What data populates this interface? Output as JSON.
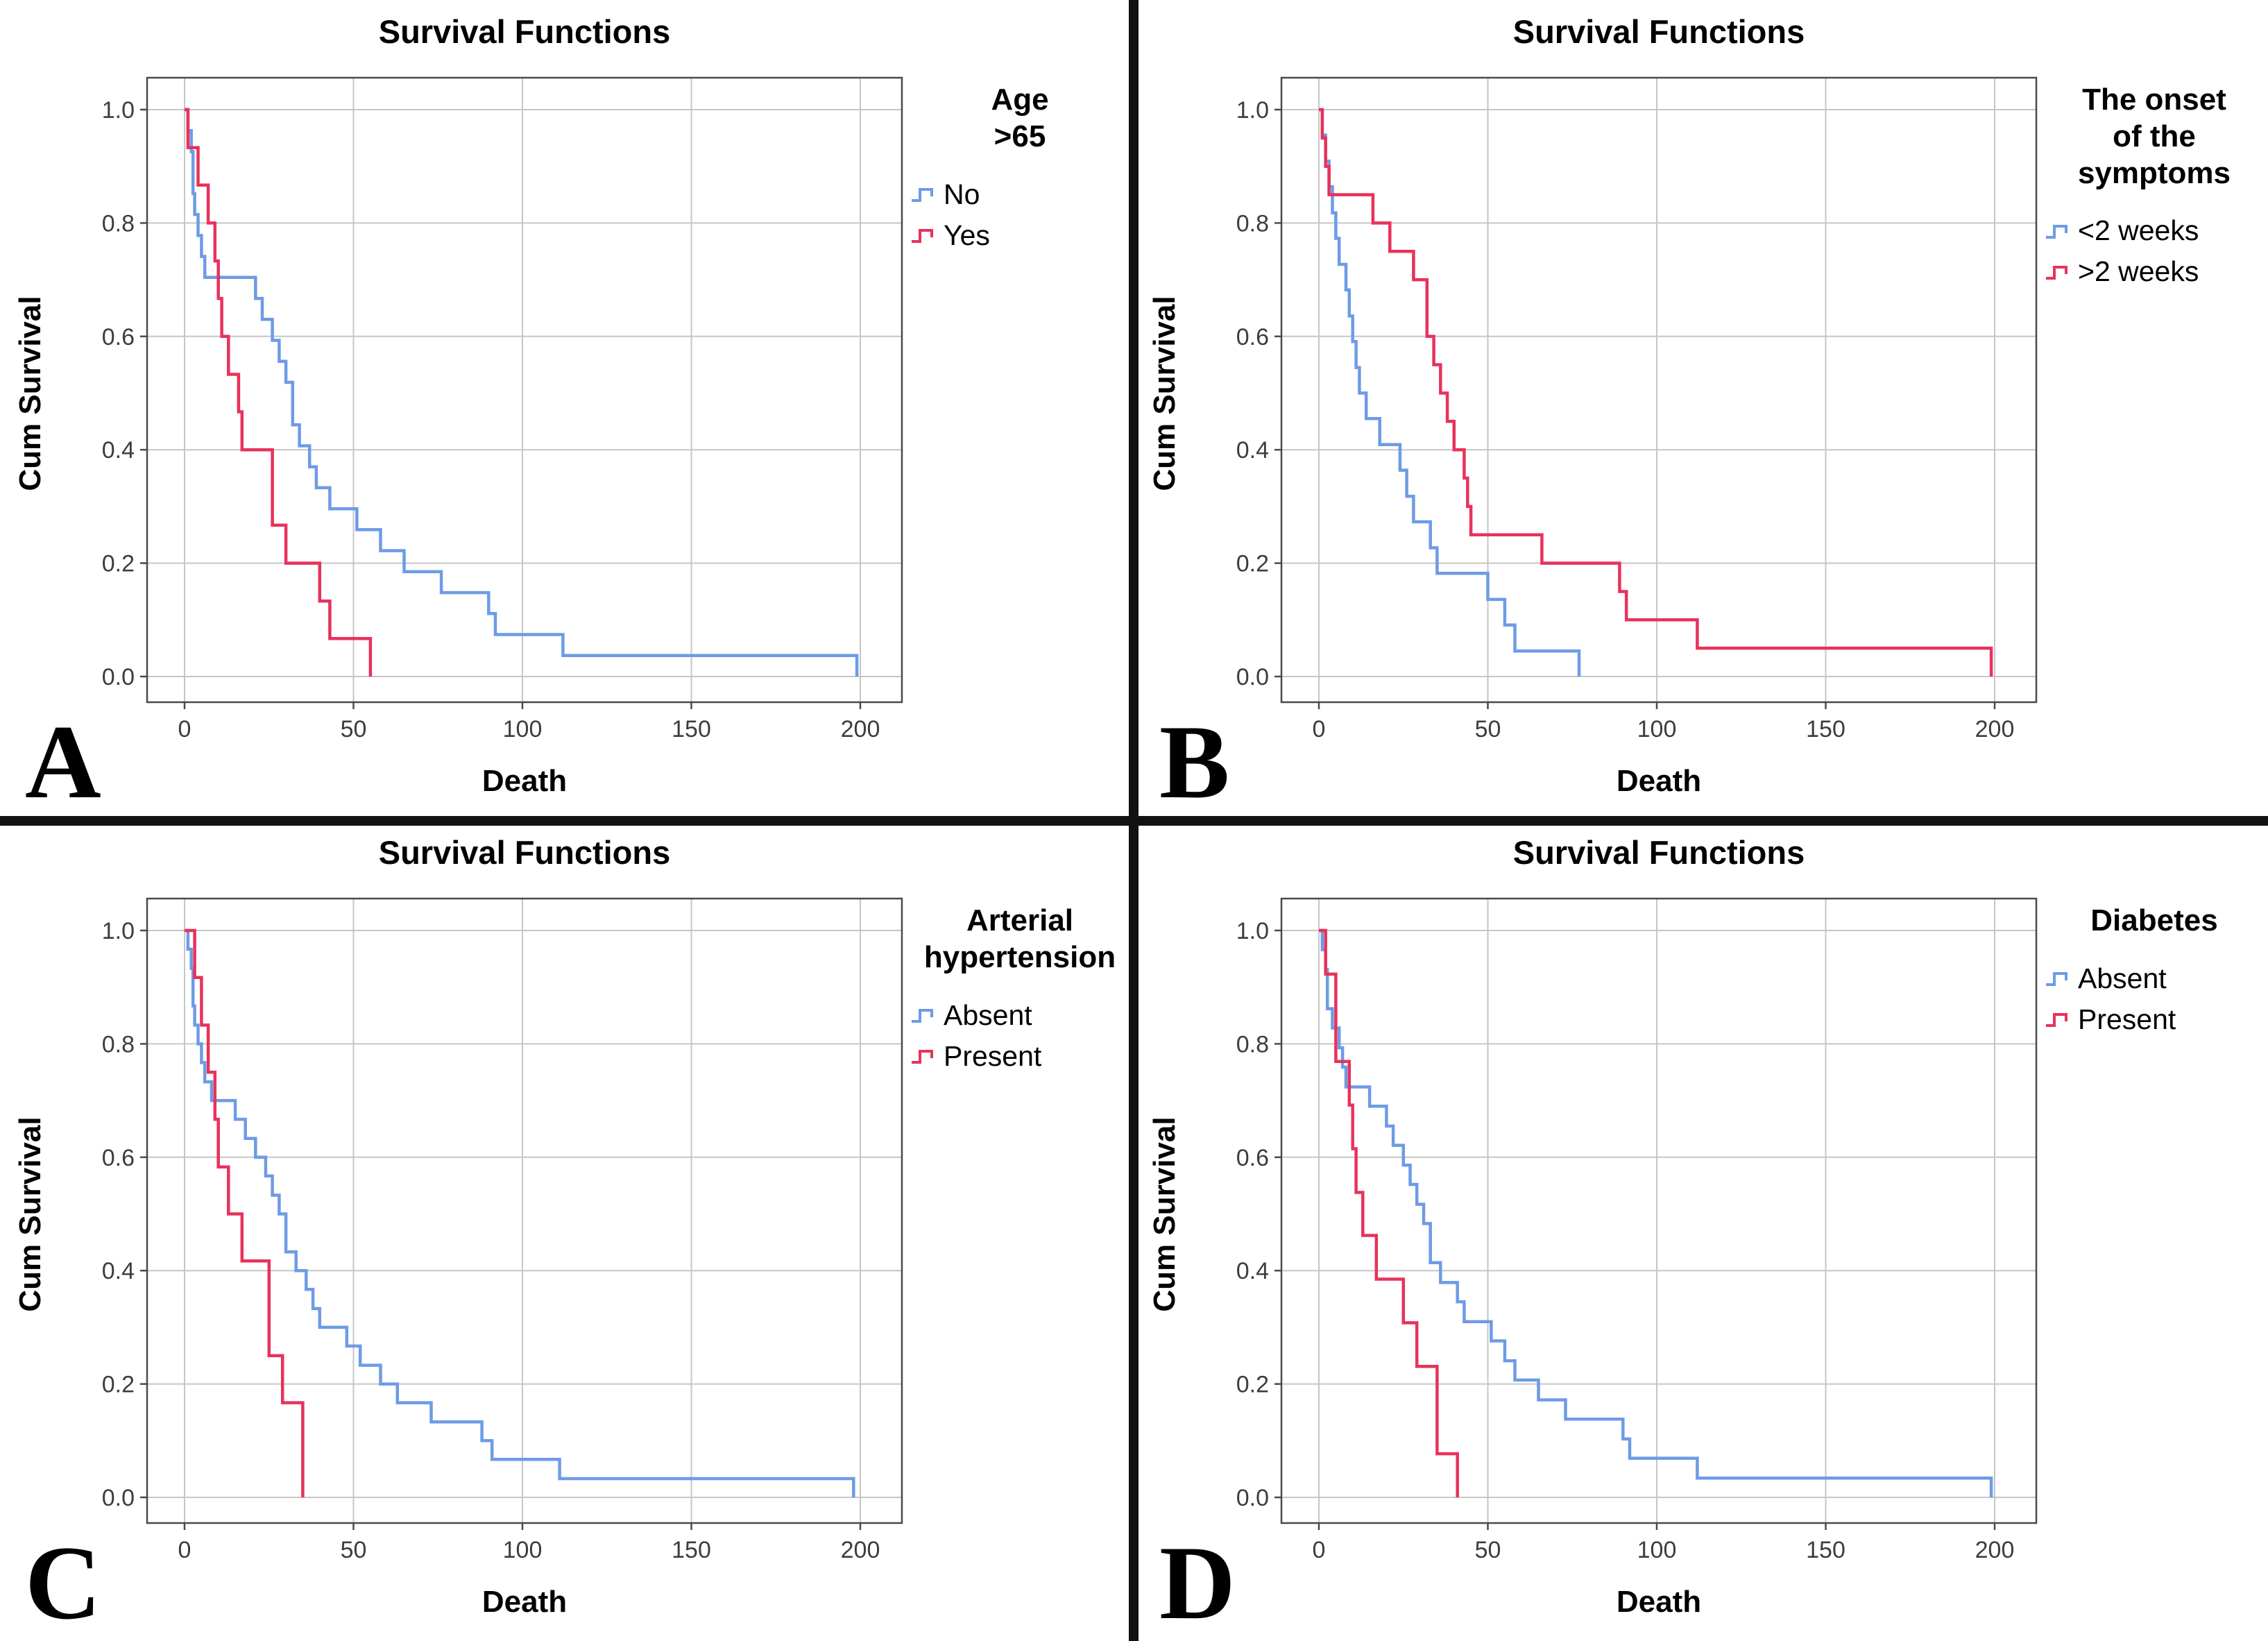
{
  "figure": {
    "background": "#FFFFFF",
    "divider_color": "#121212",
    "panel_letters": [
      "A",
      "B",
      "C",
      "D"
    ]
  },
  "colors": {
    "blue": "#6D9BE6",
    "red": "#E8325A",
    "grid": "#C6C6C6",
    "frame": "#4A4A4A",
    "tick_text": "#3D3D3D",
    "text": "#000000"
  },
  "chart_data": [
    {
      "type": "line",
      "subtype": "kaplan-meier-step",
      "panel_letter": "A",
      "title": "Survival Functions",
      "xlabel": "Death",
      "ylabel": "Cum Survival",
      "x_ticks": [
        0,
        50,
        100,
        150,
        200
      ],
      "y_tick_labels": [
        "0.0",
        "0.2",
        "0.4",
        "0.6",
        "0.8",
        "1.0"
      ],
      "y_tick_values": [
        0,
        0.2,
        0.4,
        0.6,
        0.8,
        1.0
      ],
      "xlim": [
        0,
        200
      ],
      "ylim": [
        0,
        1
      ],
      "grid": true,
      "legend_position": "right",
      "legend_title": "Age\n>65",
      "series": [
        {
          "name": "No",
          "color": "blue",
          "points": [
            [
              1,
              0.963
            ],
            [
              2,
              0.926
            ],
            [
              2.5,
              0.852
            ],
            [
              3,
              0.815
            ],
            [
              4,
              0.778
            ],
            [
              5,
              0.741
            ],
            [
              6,
              0.704
            ],
            [
              21,
              0.667
            ],
            [
              23,
              0.63
            ],
            [
              26,
              0.593
            ],
            [
              28,
              0.556
            ],
            [
              30,
              0.519
            ],
            [
              32,
              0.444
            ],
            [
              34,
              0.407
            ],
            [
              37,
              0.37
            ],
            [
              39,
              0.333
            ],
            [
              43,
              0.296
            ],
            [
              51,
              0.259
            ],
            [
              58,
              0.222
            ],
            [
              65,
              0.185
            ],
            [
              76,
              0.148
            ],
            [
              90,
              0.111
            ],
            [
              92,
              0.074
            ],
            [
              112,
              0.037
            ],
            [
              199,
              0
            ]
          ]
        },
        {
          "name": "Yes",
          "color": "red",
          "points": [
            [
              1,
              0.933
            ],
            [
              4,
              0.867
            ],
            [
              7,
              0.8
            ],
            [
              9,
              0.733
            ],
            [
              10,
              0.667
            ],
            [
              11,
              0.6
            ],
            [
              13,
              0.533
            ],
            [
              16,
              0.467
            ],
            [
              17,
              0.4
            ],
            [
              26,
              0.267
            ],
            [
              30,
              0.2
            ],
            [
              40,
              0.133
            ],
            [
              43,
              0.067
            ],
            [
              55,
              0
            ]
          ]
        }
      ]
    },
    {
      "type": "line",
      "subtype": "kaplan-meier-step",
      "panel_letter": "B",
      "title": "Survival Functions",
      "xlabel": "Death",
      "ylabel": "Cum Survival",
      "x_ticks": [
        0,
        50,
        100,
        150,
        200
      ],
      "y_tick_labels": [
        "0.0",
        "0.2",
        "0.4",
        "0.6",
        "0.8",
        "1.0"
      ],
      "y_tick_values": [
        0,
        0.2,
        0.4,
        0.6,
        0.8,
        1.0
      ],
      "xlim": [
        0,
        200
      ],
      "ylim": [
        0,
        1
      ],
      "grid": true,
      "legend_position": "right",
      "legend_title": "The onset\nof the\nsymptoms",
      "series": [
        {
          "name": "<2 weeks",
          "color": "blue",
          "points": [
            [
              1,
              0.955
            ],
            [
              2,
              0.909
            ],
            [
              3,
              0.864
            ],
            [
              4,
              0.818
            ],
            [
              5,
              0.773
            ],
            [
              6,
              0.727
            ],
            [
              8,
              0.682
            ],
            [
              9,
              0.636
            ],
            [
              10,
              0.591
            ],
            [
              11,
              0.545
            ],
            [
              12,
              0.5
            ],
            [
              14,
              0.455
            ],
            [
              18,
              0.409
            ],
            [
              24,
              0.364
            ],
            [
              26,
              0.318
            ],
            [
              28,
              0.273
            ],
            [
              33,
              0.227
            ],
            [
              35,
              0.182
            ],
            [
              50,
              0.136
            ],
            [
              55,
              0.091
            ],
            [
              58,
              0.045
            ],
            [
              77,
              0
            ]
          ]
        },
        {
          "name": ">2 weeks",
          "color": "red",
          "points": [
            [
              1,
              0.95
            ],
            [
              2,
              0.9
            ],
            [
              3,
              0.85
            ],
            [
              16,
              0.8
            ],
            [
              21,
              0.75
            ],
            [
              28,
              0.7
            ],
            [
              32,
              0.6
            ],
            [
              34,
              0.55
            ],
            [
              36,
              0.5
            ],
            [
              38,
              0.45
            ],
            [
              40,
              0.4
            ],
            [
              43,
              0.35
            ],
            [
              44,
              0.3
            ],
            [
              45,
              0.25
            ],
            [
              66,
              0.2
            ],
            [
              89,
              0.15
            ],
            [
              91,
              0.1
            ],
            [
              112,
              0.05
            ],
            [
              199,
              0
            ]
          ]
        }
      ]
    },
    {
      "type": "line",
      "subtype": "kaplan-meier-step",
      "panel_letter": "C",
      "title": "Survival Functions",
      "xlabel": "Death",
      "ylabel": "Cum Survival",
      "x_ticks": [
        0,
        50,
        100,
        150,
        200
      ],
      "y_tick_labels": [
        "0.0",
        "0.2",
        "0.4",
        "0.6",
        "0.8",
        "1.0"
      ],
      "y_tick_values": [
        0,
        0.2,
        0.4,
        0.6,
        0.8,
        1.0
      ],
      "xlim": [
        0,
        200
      ],
      "ylim": [
        0,
        1
      ],
      "grid": true,
      "legend_position": "right",
      "legend_title": "Arterial\nhypertension",
      "series": [
        {
          "name": "Absent",
          "color": "blue",
          "points": [
            [
              1,
              0.967
            ],
            [
              2,
              0.933
            ],
            [
              2.5,
              0.867
            ],
            [
              3,
              0.833
            ],
            [
              4,
              0.8
            ],
            [
              5,
              0.767
            ],
            [
              6,
              0.733
            ],
            [
              8,
              0.7
            ],
            [
              15,
              0.667
            ],
            [
              18,
              0.633
            ],
            [
              21,
              0.6
            ],
            [
              24,
              0.567
            ],
            [
              26,
              0.533
            ],
            [
              28,
              0.5
            ],
            [
              30,
              0.433
            ],
            [
              33,
              0.4
            ],
            [
              36,
              0.367
            ],
            [
              38,
              0.333
            ],
            [
              40,
              0.3
            ],
            [
              48,
              0.267
            ],
            [
              52,
              0.233
            ],
            [
              58,
              0.2
            ],
            [
              63,
              0.167
            ],
            [
              73,
              0.133
            ],
            [
              88,
              0.1
            ],
            [
              91,
              0.067
            ],
            [
              111,
              0.033
            ],
            [
              198,
              0
            ]
          ]
        },
        {
          "name": "Present",
          "color": "red",
          "points": [
            [
              3,
              0.917
            ],
            [
              5,
              0.833
            ],
            [
              7,
              0.75
            ],
            [
              9,
              0.667
            ],
            [
              10,
              0.583
            ],
            [
              13,
              0.5
            ],
            [
              17,
              0.417
            ],
            [
              25,
              0.25
            ],
            [
              29,
              0.167
            ],
            [
              35,
              0
            ]
          ]
        }
      ]
    },
    {
      "type": "line",
      "subtype": "kaplan-meier-step",
      "panel_letter": "D",
      "title": "Survival Functions",
      "xlabel": "Death",
      "ylabel": "Cum Survival",
      "x_ticks": [
        0,
        50,
        100,
        150,
        200
      ],
      "y_tick_labels": [
        "0.0",
        "0.2",
        "0.4",
        "0.6",
        "0.8",
        "1.0"
      ],
      "y_tick_values": [
        0,
        0.2,
        0.4,
        0.6,
        0.8,
        1.0
      ],
      "xlim": [
        0,
        200
      ],
      "ylim": [
        0,
        1
      ],
      "grid": true,
      "legend_position": "right",
      "legend_title": "Diabetes",
      "series": [
        {
          "name": "Absent",
          "color": "blue",
          "points": [
            [
              1,
              0.966
            ],
            [
              2,
              0.931
            ],
            [
              2.5,
              0.862
            ],
            [
              4,
              0.828
            ],
            [
              6,
              0.793
            ],
            [
              7,
              0.759
            ],
            [
              8,
              0.724
            ],
            [
              15,
              0.69
            ],
            [
              20,
              0.655
            ],
            [
              22,
              0.621
            ],
            [
              25,
              0.586
            ],
            [
              27,
              0.552
            ],
            [
              29,
              0.517
            ],
            [
              31,
              0.483
            ],
            [
              33,
              0.414
            ],
            [
              36,
              0.379
            ],
            [
              41,
              0.345
            ],
            [
              43,
              0.31
            ],
            [
              51,
              0.276
            ],
            [
              55,
              0.241
            ],
            [
              58,
              0.207
            ],
            [
              65,
              0.172
            ],
            [
              73,
              0.138
            ],
            [
              90,
              0.103
            ],
            [
              92,
              0.069
            ],
            [
              112,
              0.034
            ],
            [
              199,
              0
            ]
          ]
        },
        {
          "name": "Present",
          "color": "red",
          "points": [
            [
              2,
              0.923
            ],
            [
              5,
              0.769
            ],
            [
              9,
              0.692
            ],
            [
              10,
              0.615
            ],
            [
              11,
              0.538
            ],
            [
              13,
              0.462
            ],
            [
              17,
              0.385
            ],
            [
              25,
              0.308
            ],
            [
              29,
              0.231
            ],
            [
              35,
              0.077
            ],
            [
              41,
              0
            ]
          ]
        }
      ]
    }
  ]
}
